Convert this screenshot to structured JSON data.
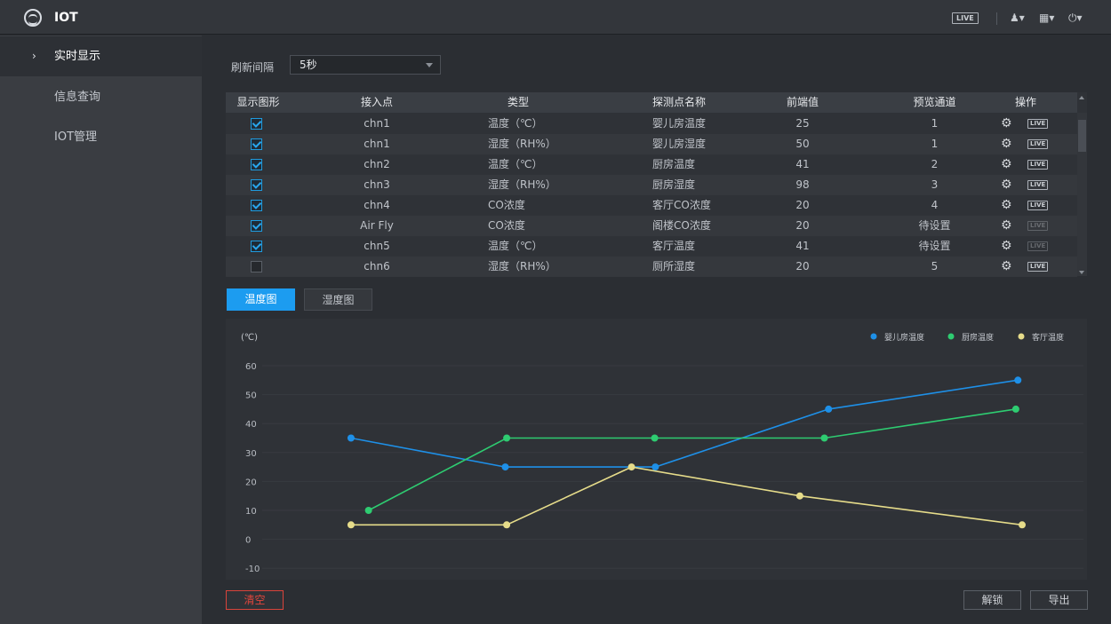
{
  "app": {
    "title": "IOT",
    "live_label": "LIVE",
    "user_icon": "user-icon",
    "layout_icon": "grid-icon",
    "power_icon": "power-icon"
  },
  "sidebar": {
    "items": [
      {
        "label": "实时显示",
        "active": true
      },
      {
        "label": "信息查询",
        "active": false
      },
      {
        "label": "IOT管理",
        "active": false
      }
    ]
  },
  "refresh": {
    "label": "刷新间隔",
    "value": "5秒"
  },
  "table": {
    "headers": [
      "显示图形",
      "接入点",
      "类型",
      "探测点名称",
      "前端值",
      "预览通道",
      "操作"
    ],
    "rows": [
      {
        "checked": true,
        "point": "chn1",
        "type": "温度（℃）",
        "name": "婴儿房温度",
        "value": "25",
        "channel": "1",
        "live_enabled": true
      },
      {
        "checked": true,
        "point": "chn1",
        "type": "湿度（RH%）",
        "name": "婴儿房湿度",
        "value": "50",
        "channel": "1",
        "live_enabled": true
      },
      {
        "checked": true,
        "point": "chn2",
        "type": "温度（℃）",
        "name": "厨房温度",
        "value": "41",
        "channel": "2",
        "live_enabled": true
      },
      {
        "checked": true,
        "point": "chn3",
        "type": "湿度（RH%）",
        "name": "厨房湿度",
        "value": "98",
        "channel": "3",
        "live_enabled": true
      },
      {
        "checked": true,
        "point": "chn4",
        "type": "CO浓度",
        "name": "客厅CO浓度",
        "value": "20",
        "channel": "4",
        "live_enabled": true
      },
      {
        "checked": true,
        "point": "Air Fly",
        "type": "CO浓度",
        "name": "阁楼CO浓度",
        "value": "20",
        "channel": "待设置",
        "live_enabled": false
      },
      {
        "checked": true,
        "point": "chn5",
        "type": "温度（℃）",
        "name": "客厅温度",
        "value": "41",
        "channel": "待设置",
        "live_enabled": false
      },
      {
        "checked": false,
        "point": "chn6",
        "type": "湿度（RH%）",
        "name": "厕所湿度",
        "value": "20",
        "channel": "5",
        "live_enabled": true
      }
    ],
    "live_label": "LIVE"
  },
  "tabs": [
    {
      "label": "温度图",
      "active": true
    },
    {
      "label": "湿度图",
      "active": false
    }
  ],
  "chart_data": {
    "type": "line",
    "unit": "(℃)",
    "ylim": [
      -10,
      60
    ],
    "yticks": [
      "60",
      "50",
      "40",
      "30",
      "20",
      "10",
      "0",
      "-10"
    ],
    "grid": true,
    "legend_position": "top-right",
    "series": [
      {
        "name": "婴儿房温度",
        "color": "#1e90e8",
        "points": [
          [
            0.043,
            35
          ],
          [
            0.263,
            25
          ],
          [
            0.477,
            25
          ],
          [
            0.724,
            45
          ],
          [
            0.994,
            55
          ]
        ]
      },
      {
        "name": "厨房温度",
        "color": "#2ecc71",
        "points": [
          [
            0.068,
            10
          ],
          [
            0.265,
            35
          ],
          [
            0.476,
            35
          ],
          [
            0.718,
            35
          ],
          [
            0.991,
            45
          ]
        ]
      },
      {
        "name": "客厅温度",
        "color": "#e6dc8a",
        "points": [
          [
            0.043,
            5
          ],
          [
            0.265,
            5
          ],
          [
            0.443,
            25
          ],
          [
            0.683,
            15
          ],
          [
            1.0,
            5
          ]
        ]
      }
    ]
  },
  "buttons": {
    "clear": "清空",
    "unlock": "解锁",
    "export": "导出"
  },
  "colors": {
    "accent": "#1c9cf0",
    "danger": "#e0463c"
  }
}
